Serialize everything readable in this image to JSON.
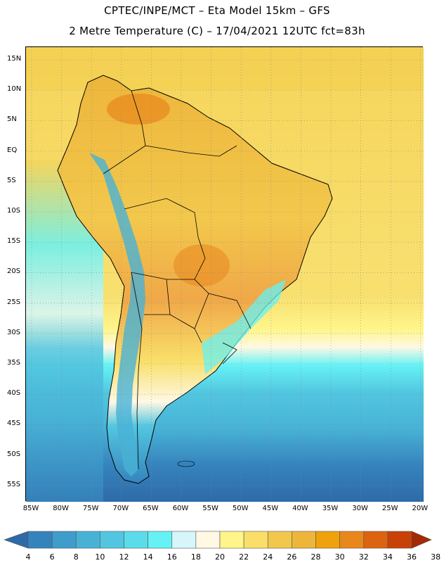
{
  "title_line1": "CPTEC/INPE/MCT –  Eta Model 15km – GFS",
  "title_line2": "2 Metre Temperature (C) – 17/04/2021 12UTC fct=83h",
  "lat_labels": [
    "15N",
    "10N",
    "5N",
    "EQ",
    "5S",
    "10S",
    "15S",
    "20S",
    "25S",
    "30S",
    "35S",
    "40S",
    "45S",
    "50S",
    "55S"
  ],
  "lon_labels": [
    "85W",
    "80W",
    "75W",
    "70W",
    "65W",
    "60W",
    "55W",
    "50W",
    "45W",
    "40W",
    "35W",
    "30W",
    "25W",
    "20W"
  ],
  "colorbar": {
    "labels": [
      "4",
      "6",
      "8",
      "10",
      "12",
      "14",
      "16",
      "18",
      "20",
      "22",
      "24",
      "26",
      "28",
      "30",
      "32",
      "34",
      "36",
      "38"
    ],
    "colors": [
      "#2e6aa8",
      "#3583bd",
      "#3f9ccb",
      "#48b2d6",
      "#52c6e0",
      "#5cdcea",
      "#66f2f5",
      "#d6f6fb",
      "#fff8e4",
      "#fff58a",
      "#f9df6a",
      "#f2c84c",
      "#edb63b",
      "#f0a20c",
      "#e8871c",
      "#dc6410",
      "#c84207",
      "#a32a05"
    ]
  },
  "map": {
    "ocean_north_color": "#f5cf50",
    "land_hot_color": "#eeb43a",
    "south_ocean_color": "#3583bd"
  }
}
